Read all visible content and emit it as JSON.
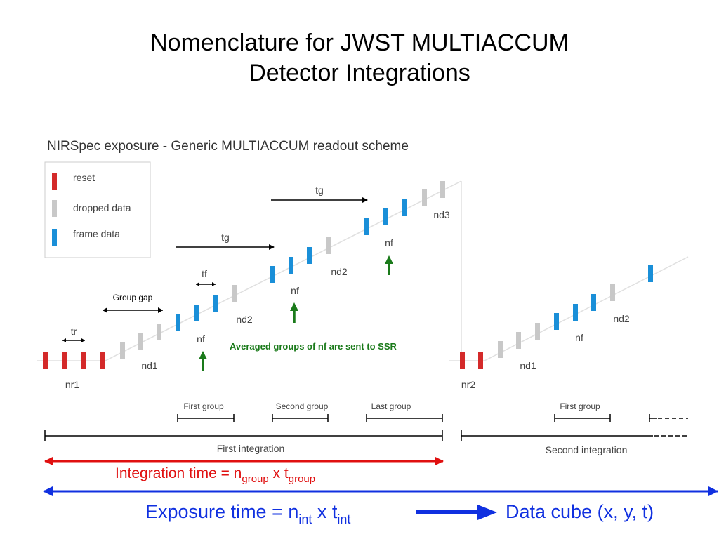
{
  "slide": {
    "title_line1": "Nomenclature for JWST MULTIACCUM",
    "title_line2": "Detector Integrations"
  },
  "figure": {
    "title": "NIRSpec exposure - Generic MULTIACCUM readout scheme",
    "legend": [
      {
        "label": "reset",
        "color": "#d42a2a"
      },
      {
        "label": "dropped data",
        "color": "#c8c8c8"
      },
      {
        "label": "frame data",
        "color": "#1a8fd8"
      }
    ],
    "labels": {
      "tr": "tr",
      "tf": "tf",
      "tg_1": "tg",
      "tg_2": "tg",
      "group_gap": "Group gap",
      "nr1": "nr1",
      "nd1": "nd1",
      "nd2_a": "nd2",
      "nd2_b": "nd2",
      "nd3": "nd3",
      "nf_1": "nf",
      "nf_2": "nf",
      "nf_3": "nf",
      "nr2": "nr2",
      "nd1_b": "nd1",
      "nf_4": "nf",
      "nd2_c": "nd2",
      "first_group": "First group",
      "second_group": "Second group",
      "last_group": "Last group",
      "first_group_b": "First group",
      "first_integration": "First integration",
      "second_integration": "Second integration"
    },
    "annotation": "Averaged groups of nf are sent to SSR"
  },
  "integration_time": {
    "prefix": "Integration time = n",
    "sub1": "group",
    "mid": " x t",
    "sub2": "group"
  },
  "exposure_time": {
    "prefix": "Exposure time = n",
    "sub1": "int",
    "mid": " x t",
    "sub2": "int"
  },
  "data_cube": "Data cube (x, y, t)",
  "colors": {
    "reset": "#d42a2a",
    "dropped": "#c8c8c8",
    "frame": "#1a8fd8",
    "green_arrow": "#1a7a1a",
    "integration_arrow": "#e01010",
    "exposure_arrow": "#1030e0"
  }
}
